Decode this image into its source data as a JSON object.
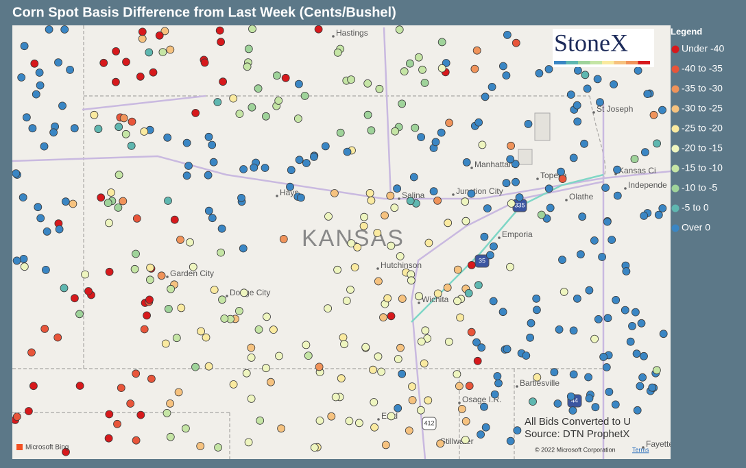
{
  "header": {
    "title": "Corn Spot Basis Difference from Last Week (Cents/Bushel)"
  },
  "legend": {
    "title": "Legend",
    "items": [
      {
        "label": "Under -40",
        "color": "#d7191c"
      },
      {
        "label": "-40 to -35",
        "color": "#e8553a"
      },
      {
        "label": "-35 to -30",
        "color": "#f0935a"
      },
      {
        "label": "-30 to -25",
        "color": "#f6c27f"
      },
      {
        "label": "-25 to -20",
        "color": "#faeaa0"
      },
      {
        "label": "-20 to -15",
        "color": "#eef5bf"
      },
      {
        "label": "-15 to -10",
        "color": "#c5e5a5"
      },
      {
        "label": "-10 to -5",
        "color": "#9fd39a"
      },
      {
        "label": "-5 to 0",
        "color": "#5fb7b0"
      },
      {
        "label": "Over 0",
        "color": "#3a86c4"
      }
    ]
  },
  "map": {
    "state_label": "KANSAS",
    "places": [
      "Hastings",
      "St Joseph",
      "Kansas Ci",
      "Independe",
      "Manhattan",
      "Topeka",
      "Junction City",
      "Olathe",
      "Hays",
      "Salina",
      "Emporia",
      "Garden City",
      "Dodge City",
      "Hutchinson",
      "Wichita",
      "Bartlesville",
      "Osage I.R.",
      "Enid",
      "Stillwater",
      "Fayette"
    ],
    "shields": [
      "335",
      "35",
      "412",
      "44"
    ]
  },
  "notes": [
    "All Bids Converted to U",
    "Source: DTN ProphetX"
  ],
  "logo": "StoneX",
  "footer": {
    "brand": "Microsoft Bing",
    "copyright": "© 2022 Microsoft Corporation",
    "terms": "Terms"
  }
}
